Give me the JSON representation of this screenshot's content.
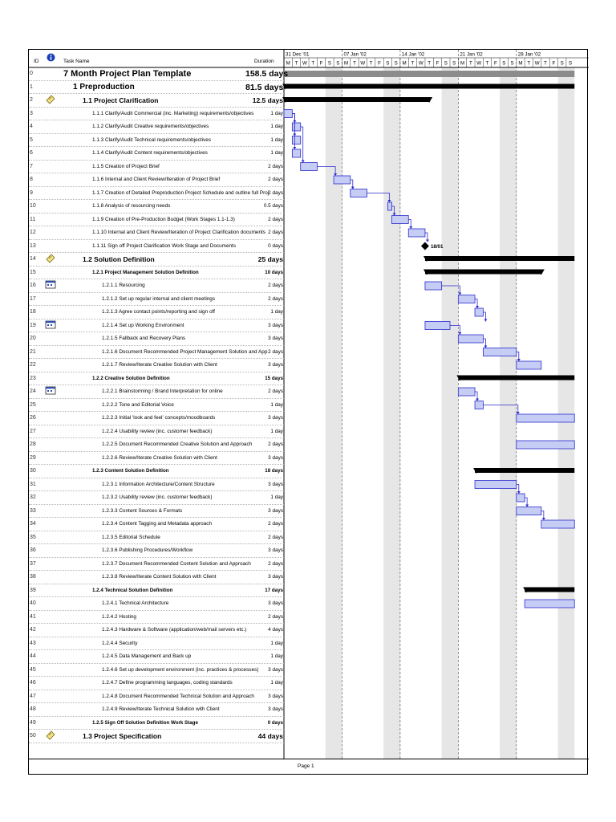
{
  "header": {
    "id_label": "ID",
    "indicator_icon": "info-icon",
    "task_name_label": "Task Name",
    "duration_label": "Duration"
  },
  "timescale": {
    "weeks": [
      "31 Dec '01",
      "07 Jan '02",
      "14 Jan '02",
      "21 Jan '02",
      "28 Jan '02"
    ],
    "days": [
      "M",
      "T",
      "W",
      "T",
      "F",
      "S",
      "S",
      "M",
      "T",
      "W",
      "T",
      "F",
      "S",
      "S",
      "M",
      "T",
      "W",
      "T",
      "F",
      "S",
      "S",
      "M",
      "T",
      "W",
      "T",
      "F",
      "S",
      "S",
      "M",
      "T",
      "W",
      "T",
      "F",
      "S",
      "S"
    ]
  },
  "colors": {
    "task_bar_fill": "#c5cdf5",
    "task_bar_border": "#2a2acc",
    "link_line": "#2a2acc",
    "summary_bar": "#000000",
    "project_summary_bar": "#8c8c8c",
    "weekend_shade": "#e6e6e6"
  },
  "tasks": [
    {
      "id": "0",
      "level": 0,
      "name": "7 Month Project Plan Template",
      "duration": "158.5 days",
      "indicator": ""
    },
    {
      "id": "1",
      "level": 1,
      "name": "1 Preproduction",
      "duration": "81.5 days",
      "indicator": ""
    },
    {
      "id": "2",
      "level": 2,
      "name": "1.1 Project Clarification",
      "duration": "12.5 days",
      "indicator": "note-icon"
    },
    {
      "id": "3",
      "level": 4,
      "name": "1.1.1 Clarify/Audit Commercial (inc. Marketing) requirements/objectives",
      "duration": "1 day",
      "indicator": ""
    },
    {
      "id": "4",
      "level": 4,
      "name": "1.1.2 Clarify/Audit Creative requirements/objectives",
      "duration": "1 day",
      "indicator": ""
    },
    {
      "id": "5",
      "level": 4,
      "name": "1.1.3 Clarify/Audit Technical requirements/objectives",
      "duration": "1 day",
      "indicator": ""
    },
    {
      "id": "6",
      "level": 4,
      "name": "1.1.4 Clarify/Audit Content requirements/objectives",
      "duration": "1 day",
      "indicator": ""
    },
    {
      "id": "7",
      "level": 4,
      "name": "1.1.5 Creation of Project Brief",
      "duration": "2 days",
      "indicator": ""
    },
    {
      "id": "8",
      "level": 4,
      "name": "1.1.6 Internal and Client Review/Iteration of Project Brief",
      "duration": "2 days",
      "indicator": ""
    },
    {
      "id": "9",
      "level": 4,
      "name": "1.1.7 Creation of Detailed Preproduction Project Schedule and outline full Proj",
      "duration": "2 days",
      "indicator": ""
    },
    {
      "id": "10",
      "level": 4,
      "name": "1.1.8 Analysis of resourcing needs",
      "duration": "0.5 days",
      "indicator": ""
    },
    {
      "id": "11",
      "level": 4,
      "name": "1.1.9 Creation of Pre-Production Budget (Work Stages 1.1-1.3)",
      "duration": "2 days",
      "indicator": ""
    },
    {
      "id": "12",
      "level": 4,
      "name": "1.1.10 Internal and Client Review/Iteration of Project Clarification documents",
      "duration": "2 days",
      "indicator": ""
    },
    {
      "id": "13",
      "level": 4,
      "name": "1.1.11 Sign off Project Clarification Work Stage and Documents",
      "duration": "0 days",
      "indicator": ""
    },
    {
      "id": "14",
      "level": 2,
      "name": "1.2 Solution Definition",
      "duration": "25 days",
      "indicator": "note-icon"
    },
    {
      "id": "15",
      "level": 3,
      "name": "1.2.1 Project Management Solution Definition",
      "duration": "10 days",
      "indicator": ""
    },
    {
      "id": "16",
      "level": 5,
      "name": "1.2.1.1 Resourcing",
      "duration": "2 days",
      "indicator": "calendar-icon"
    },
    {
      "id": "17",
      "level": 5,
      "name": "1.2.1.2 Set up regular internal and client meetings",
      "duration": "2 days",
      "indicator": ""
    },
    {
      "id": "18",
      "level": 5,
      "name": "1.2.1.3 Agree contact points/reporting and sign off",
      "duration": "1 day",
      "indicator": ""
    },
    {
      "id": "19",
      "level": 5,
      "name": "1.2.1.4 Set up Working Environment",
      "duration": "3 days",
      "indicator": "calendar-icon"
    },
    {
      "id": "20",
      "level": 5,
      "name": "1.2.1.5 Fallback and Recovery Plans",
      "duration": "3 days",
      "indicator": ""
    },
    {
      "id": "21",
      "level": 5,
      "name": "1.2.1.6 Document Recommended Project Management Solution and App",
      "duration": "2 days",
      "indicator": ""
    },
    {
      "id": "22",
      "level": 5,
      "name": "1.2.1.7 Review/Iterate Creative Solution with Client",
      "duration": "3 days",
      "indicator": ""
    },
    {
      "id": "23",
      "level": 3,
      "name": "1.2.2 Creative Solution Definition",
      "duration": "15 days",
      "indicator": ""
    },
    {
      "id": "24",
      "level": 5,
      "name": "1.2.2.1 Brainstorming / Brand Interpretation for online",
      "duration": "2 days",
      "indicator": "calendar-icon"
    },
    {
      "id": "25",
      "level": 5,
      "name": "1.2.2.2 Tone and Editorial Voice",
      "duration": "1 day",
      "indicator": ""
    },
    {
      "id": "26",
      "level": 5,
      "name": "1.2.2.3 Initial 'look and feel' concepts/moodboards",
      "duration": "3 days",
      "indicator": ""
    },
    {
      "id": "27",
      "level": 5,
      "name": "1.2.2.4 Usability review (inc. customer feedback)",
      "duration": "1 day",
      "indicator": ""
    },
    {
      "id": "28",
      "level": 5,
      "name": "1.2.2.5 Document Recommended Creative Solution and Approach",
      "duration": "2 days",
      "indicator": ""
    },
    {
      "id": "29",
      "level": 5,
      "name": "1.2.2.6 Review/Iterate Creative Solution with Client",
      "duration": "3 days",
      "indicator": ""
    },
    {
      "id": "30",
      "level": 3,
      "name": "1.2.3 Content Solution Definition",
      "duration": "18 days",
      "indicator": ""
    },
    {
      "id": "31",
      "level": 5,
      "name": "1.2.3.1 Information Architecture/Content Structure",
      "duration": "3 days",
      "indicator": ""
    },
    {
      "id": "32",
      "level": 5,
      "name": "1.2.3.2 Usability review (inc. customer feedback)",
      "duration": "1 day",
      "indicator": ""
    },
    {
      "id": "33",
      "level": 5,
      "name": "1.2.3.3 Content Sources & Formats",
      "duration": "3 days",
      "indicator": ""
    },
    {
      "id": "34",
      "level": 5,
      "name": "1.2.3.4 Content Tagging and Metadata approach",
      "duration": "2 days",
      "indicator": ""
    },
    {
      "id": "35",
      "level": 5,
      "name": "1.2.3.5 Editorial Schedule",
      "duration": "2 days",
      "indicator": ""
    },
    {
      "id": "36",
      "level": 5,
      "name": "1.2.3.6 Publishing Procedures/Workflow",
      "duration": "3 days",
      "indicator": ""
    },
    {
      "id": "37",
      "level": 5,
      "name": "1.2.3.7 Document Recommended Content Solution and Approach",
      "duration": "2 days",
      "indicator": ""
    },
    {
      "id": "38",
      "level": 5,
      "name": "1.2.3.8 Review/Iterate Content Solution with Client",
      "duration": "3 days",
      "indicator": ""
    },
    {
      "id": "39",
      "level": 3,
      "name": "1.2.4 Technical Solution Definition",
      "duration": "17 days",
      "indicator": ""
    },
    {
      "id": "40",
      "level": 5,
      "name": "1.2.4.1 Technical Architecture",
      "duration": "3 days",
      "indicator": ""
    },
    {
      "id": "41",
      "level": 5,
      "name": "1.2.4.2 Hosting",
      "duration": "2 days",
      "indicator": ""
    },
    {
      "id": "42",
      "level": 5,
      "name": "1.2.4.3 Hardware & Software (application/web/mail servers etc.)",
      "duration": "4 days",
      "indicator": ""
    },
    {
      "id": "43",
      "level": 5,
      "name": "1.2.4.4 Security",
      "duration": "1 day",
      "indicator": ""
    },
    {
      "id": "44",
      "level": 5,
      "name": "1.2.4.5 Data Management and Back up",
      "duration": "1 day",
      "indicator": ""
    },
    {
      "id": "45",
      "level": 5,
      "name": "1.2.4.6 Set up development environment (inc. practices & processes)",
      "duration": "3 days",
      "indicator": ""
    },
    {
      "id": "46",
      "level": 5,
      "name": "1.2.4.7 Define programming languages, coding standards",
      "duration": "1 day",
      "indicator": ""
    },
    {
      "id": "47",
      "level": 5,
      "name": "1.2.4.8 Document Recommended Technical Solution and Approach",
      "duration": "3 days",
      "indicator": ""
    },
    {
      "id": "48",
      "level": 5,
      "name": "1.2.4.9 Review/Iterate Technical Solution with Client",
      "duration": "3 days",
      "indicator": ""
    },
    {
      "id": "49",
      "level": 3,
      "name": "1.2.5 Sign Off Solution Definition Work Stage",
      "duration": "0 days",
      "indicator": ""
    },
    {
      "id": "50",
      "level": 2,
      "name": "1.3 Project Specification",
      "duration": "44 days",
      "indicator": "note-icon"
    }
  ],
  "bars": [
    {
      "row": 0,
      "type": "project",
      "start": 0,
      "end": 35
    },
    {
      "row": 1,
      "type": "summary",
      "start": 0,
      "end": 35
    },
    {
      "row": 2,
      "type": "summary",
      "start": 0,
      "end": 17.5
    },
    {
      "row": 3,
      "type": "task",
      "start": 0,
      "end": 1
    },
    {
      "row": 4,
      "type": "task",
      "start": 1,
      "end": 2
    },
    {
      "row": 5,
      "type": "task",
      "start": 1,
      "end": 2
    },
    {
      "row": 6,
      "type": "task",
      "start": 1,
      "end": 2
    },
    {
      "row": 7,
      "type": "task",
      "start": 2,
      "end": 4
    },
    {
      "row": 8,
      "type": "task",
      "start": 6,
      "end": 8
    },
    {
      "row": 9,
      "type": "task",
      "start": 8,
      "end": 10
    },
    {
      "row": 10,
      "type": "task",
      "start": 12.5,
      "end": 13
    },
    {
      "row": 11,
      "type": "task",
      "start": 13,
      "end": 15
    },
    {
      "row": 12,
      "type": "task",
      "start": 15,
      "end": 17
    },
    {
      "row": 13,
      "type": "milestone",
      "start": 17,
      "label": "18/01"
    },
    {
      "row": 14,
      "type": "summary",
      "start": 17,
      "end": 35
    },
    {
      "row": 15,
      "type": "summary",
      "start": 17,
      "end": 31
    },
    {
      "row": 16,
      "type": "task",
      "start": 17,
      "end": 19
    },
    {
      "row": 17,
      "type": "task",
      "start": 21,
      "end": 23
    },
    {
      "row": 18,
      "type": "task",
      "start": 23,
      "end": 24
    },
    {
      "row": 19,
      "type": "task",
      "start": 17,
      "end": 20
    },
    {
      "row": 20,
      "type": "task",
      "start": 21,
      "end": 24
    },
    {
      "row": 21,
      "type": "task",
      "start": 24,
      "end": 28
    },
    {
      "row": 22,
      "type": "task",
      "start": 28,
      "end": 31
    },
    {
      "row": 23,
      "type": "summary",
      "start": 21,
      "end": 35
    },
    {
      "row": 24,
      "type": "task",
      "start": 21,
      "end": 23
    },
    {
      "row": 25,
      "type": "task",
      "start": 23,
      "end": 24
    },
    {
      "row": 26,
      "type": "task",
      "start": 28,
      "end": 35
    },
    {
      "row": 28,
      "type": "task",
      "start": 28,
      "end": 35
    },
    {
      "row": 30,
      "type": "summary",
      "start": 23,
      "end": 35
    },
    {
      "row": 31,
      "type": "task",
      "start": 23,
      "end": 28
    },
    {
      "row": 32,
      "type": "task",
      "start": 28,
      "end": 29
    },
    {
      "row": 33,
      "type": "task",
      "start": 28,
      "end": 31
    },
    {
      "row": 34,
      "type": "task",
      "start": 31,
      "end": 35
    },
    {
      "row": 39,
      "type": "summary",
      "start": 29,
      "end": 35
    },
    {
      "row": 40,
      "type": "task",
      "start": 29,
      "end": 35
    }
  ],
  "links": [
    {
      "from": 3,
      "to": 4
    },
    {
      "from": 3,
      "to": 5
    },
    {
      "from": 3,
      "to": 6
    },
    {
      "from": 4,
      "to": 7
    },
    {
      "from": 7,
      "to": 8
    },
    {
      "from": 8,
      "to": 9
    },
    {
      "from": 9,
      "to": 10
    },
    {
      "from": 10,
      "to": 11
    },
    {
      "from": 11,
      "to": 12
    },
    {
      "from": 12,
      "to": 13
    },
    {
      "from": 16,
      "to": 17
    },
    {
      "from": 17,
      "to": 18
    },
    {
      "from": 18,
      "to": 19
    },
    {
      "from": 19,
      "to": 20
    },
    {
      "from": 20,
      "to": 21
    },
    {
      "from": 21,
      "to": 22
    },
    {
      "from": 24,
      "to": 25
    },
    {
      "from": 25,
      "to": 26
    },
    {
      "from": 31,
      "to": 32
    },
    {
      "from": 32,
      "to": 33
    },
    {
      "from": 33,
      "to": 34
    }
  ],
  "footer": {
    "page_label": "Page 1"
  }
}
